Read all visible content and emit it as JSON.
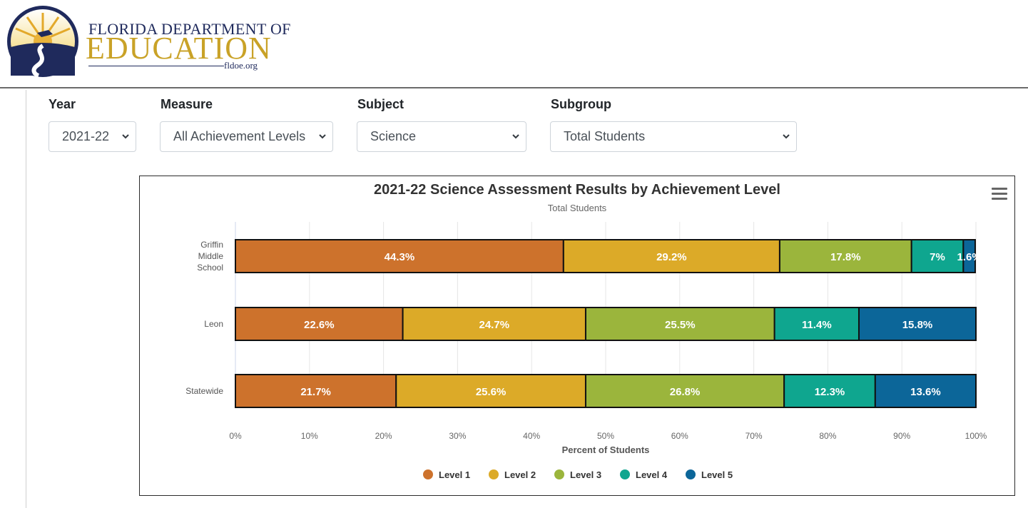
{
  "header": {
    "logo_line1": "FLORIDA DEPARTMENT OF",
    "logo_line2": "EDUCATION",
    "logo_line3": "fldoe.org"
  },
  "filters": {
    "year": {
      "label": "Year",
      "value": "2021-22"
    },
    "measure": {
      "label": "Measure",
      "value": "All Achievement Levels"
    },
    "subject": {
      "label": "Subject",
      "value": "Science"
    },
    "subgroup": {
      "label": "Subgroup",
      "value": "Total Students"
    }
  },
  "chart_data": {
    "type": "bar",
    "orientation": "horizontal",
    "stacked": true,
    "title": "2021-22 Science Assessment Results by Achievement Level",
    "subtitle": "Total Students",
    "xlabel": "Percent of Students",
    "ylabel": "",
    "xlim": [
      0,
      100
    ],
    "x_ticks": [
      "0%",
      "10%",
      "20%",
      "30%",
      "40%",
      "50%",
      "60%",
      "70%",
      "80%",
      "90%",
      "100%"
    ],
    "categories": [
      {
        "lines": [
          "Griffin",
          "Middle",
          "School"
        ]
      },
      {
        "lines": [
          "Leon"
        ]
      },
      {
        "lines": [
          "Statewide"
        ]
      }
    ],
    "series": [
      {
        "name": "Level 1",
        "color": "#cd722c",
        "values": [
          44.3,
          22.6,
          21.7
        ],
        "labels": [
          "44.3%",
          "22.6%",
          "21.7%"
        ]
      },
      {
        "name": "Level 2",
        "color": "#dcaa28",
        "values": [
          29.2,
          24.7,
          25.6
        ],
        "labels": [
          "29.2%",
          "24.7%",
          "25.6%"
        ]
      },
      {
        "name": "Level 3",
        "color": "#9bb53c",
        "values": [
          17.8,
          25.5,
          26.8
        ],
        "labels": [
          "17.8%",
          "25.5%",
          "26.8%"
        ]
      },
      {
        "name": "Level 4",
        "color": "#0fa68f",
        "values": [
          7,
          11.4,
          12.3
        ],
        "labels": [
          "7%",
          "11.4%",
          "12.3%"
        ]
      },
      {
        "name": "Level 5",
        "color": "#0c6699",
        "values": [
          1.6,
          15.8,
          13.6
        ],
        "labels": [
          "1.6%",
          "15.8%",
          "13.6%"
        ]
      }
    ],
    "grid": true,
    "legend_position": "bottom-center"
  }
}
